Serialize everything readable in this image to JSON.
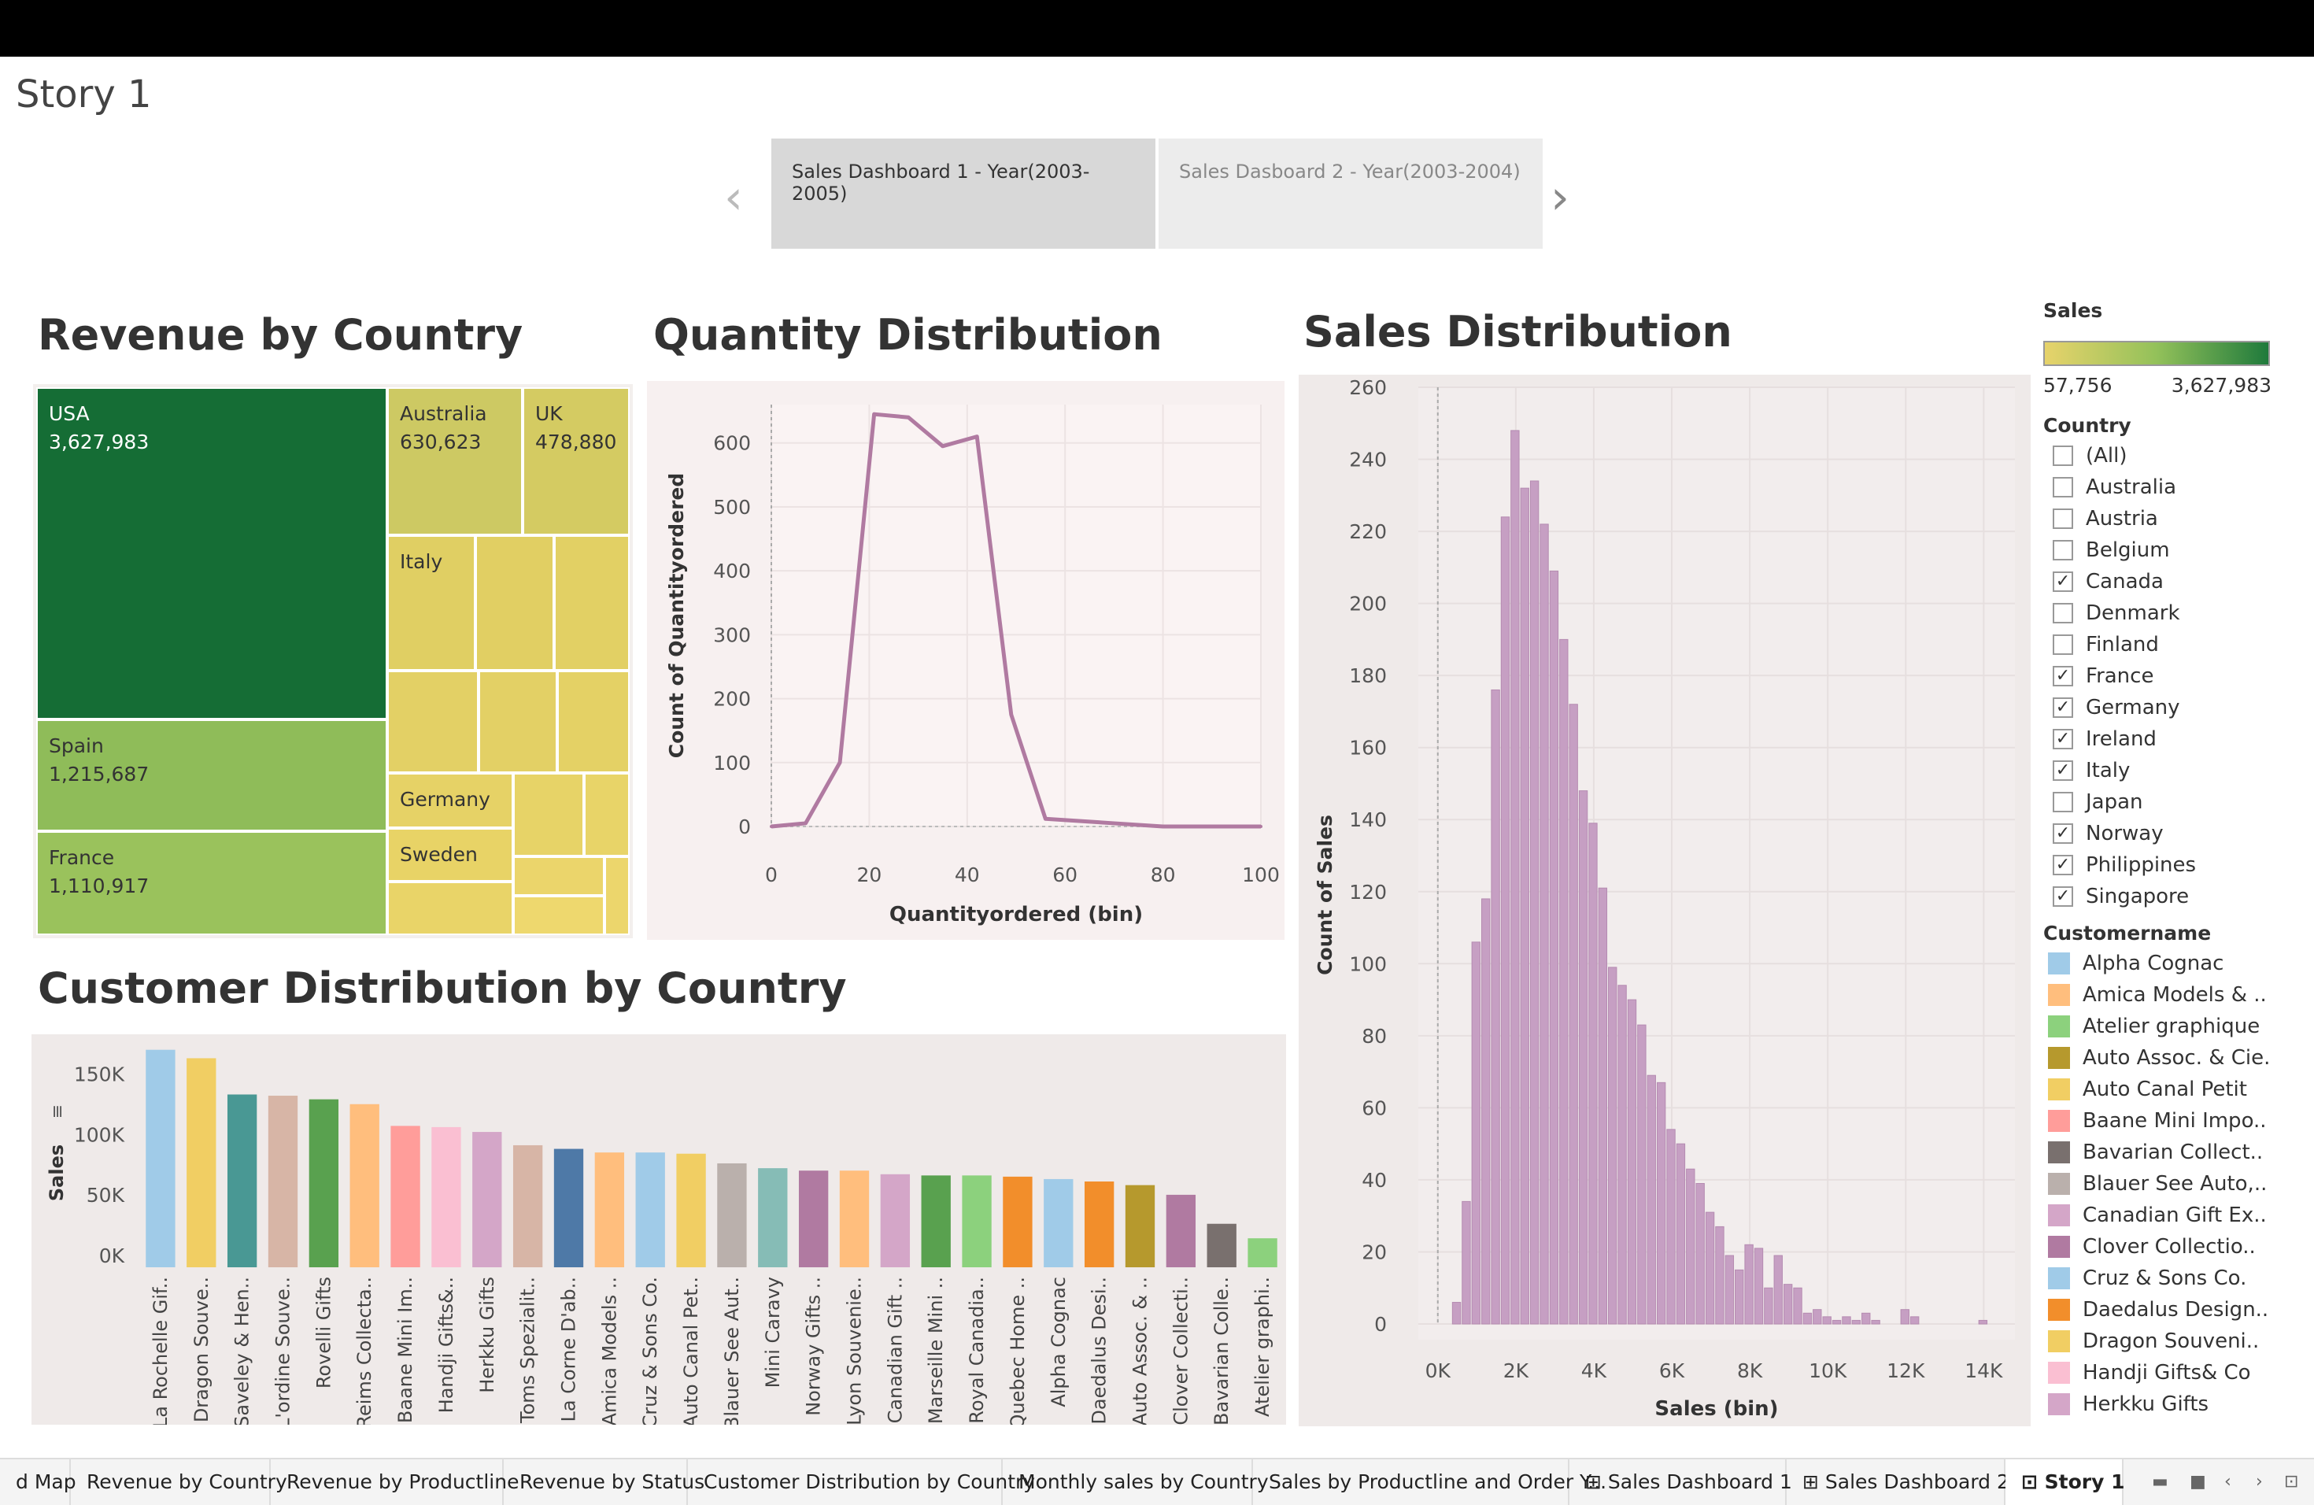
{
  "story": {
    "title": "Story 1",
    "tabs": [
      "Sales Dashboard  1 - Year(2003-2005)",
      "Sales Dasboard  2 - Year(2003-2004)"
    ],
    "prev_icon": "‹",
    "next_icon": "›"
  },
  "panels": {
    "revenue_title": "Revenue by Country",
    "quantity_title": "Quantity Distribution",
    "sales_title": "Sales Distribution",
    "customer_title": "Customer Distribution by Country"
  },
  "treemap": {
    "cells": [
      {
        "name": "USA",
        "value": "3,627,983",
        "color": "#156d35"
      },
      {
        "name": "Spain",
        "value": "1,215,687",
        "color": "#8fbc59"
      },
      {
        "name": "France",
        "value": "1,110,917",
        "color": "#9ac25c"
      },
      {
        "name": "Australia",
        "value": "630,623",
        "color": "#cdc963"
      },
      {
        "name": "UK",
        "value": "478,880",
        "color": "#d4cb62"
      },
      {
        "name": "Italy",
        "value": "",
        "color": "#e0cf63"
      },
      {
        "name": "Germany",
        "value": "",
        "color": "#e6d266"
      },
      {
        "name": "Sweden",
        "value": "",
        "color": "#e8d366"
      }
    ]
  },
  "chart_data": [
    {
      "type": "line",
      "title": "Quantity Distribution",
      "xlabel": "Quantityordered (bin)",
      "ylabel": "Count of Quantityordered",
      "x": [
        0,
        7,
        14,
        21,
        28,
        35,
        42,
        49,
        56,
        70,
        80,
        90,
        100
      ],
      "values": [
        0,
        5,
        100,
        645,
        640,
        595,
        610,
        175,
        12,
        5,
        0,
        0,
        0
      ],
      "xticks": [
        "0",
        "20",
        "40",
        "60",
        "80",
        "100"
      ],
      "yticks": [
        "0",
        "100",
        "200",
        "300",
        "400",
        "500",
        "600"
      ],
      "xlim": [
        0,
        100
      ],
      "ylim": [
        0,
        660
      ],
      "color": "#b07aa1"
    },
    {
      "type": "bar",
      "title": "Sales Distribution",
      "xlabel": "Sales (bin)",
      "ylabel": "Count of Sales",
      "x": [
        500,
        750,
        1000,
        1250,
        1500,
        1750,
        2000,
        2250,
        2500,
        2750,
        3000,
        3250,
        3500,
        3750,
        4000,
        4250,
        4500,
        4750,
        5000,
        5250,
        5500,
        5750,
        6000,
        6250,
        6500,
        6750,
        7000,
        7250,
        7500,
        7750,
        8000,
        8250,
        8500,
        8750,
        9000,
        9250,
        9500,
        9750,
        10000,
        10250,
        10500,
        10750,
        11000,
        11250,
        11500,
        11750,
        12000,
        12250,
        12500,
        14000
      ],
      "values": [
        6,
        34,
        106,
        118,
        176,
        224,
        248,
        232,
        234,
        222,
        209,
        190,
        172,
        148,
        139,
        121,
        99,
        94,
        90,
        83,
        69,
        67,
        54,
        50,
        43,
        39,
        31,
        27,
        19,
        15,
        22,
        21,
        10,
        19,
        11,
        10,
        3,
        4,
        2,
        1,
        2,
        1,
        3,
        1,
        0,
        0,
        4,
        2,
        0,
        1
      ],
      "xticks": [
        "0K",
        "2K",
        "4K",
        "6K",
        "8K",
        "10K",
        "12K",
        "14K"
      ],
      "yticks": [
        "0",
        "20",
        "40",
        "60",
        "80",
        "100",
        "120",
        "140",
        "160",
        "180",
        "200",
        "220",
        "240",
        "260"
      ],
      "ylim": [
        0,
        260
      ],
      "color": "#c69fc3"
    },
    {
      "type": "bar",
      "title": "Customer Distribution by Country",
      "ylabel": "Sales",
      "ylabel_icon": "≡",
      "categories": [
        "La Rochelle Gif..",
        "Dragon Souve..",
        "Saveley & Hen..",
        "L'ordine Souve..",
        "Rovelli Gifts",
        "Reims Collecta..",
        "Baane Mini Im..",
        "Handji Gifts&..",
        "Herkku Gifts",
        "Toms Spezialit..",
        "La Corne D'ab..",
        "Amica Models ..",
        "Cruz & Sons Co.",
        "Auto Canal Pet..",
        "Blauer See Aut..",
        "Mini Caravy",
        "Norway Gifts ..",
        "Lyon Souvenie..",
        "Canadian Gift ..",
        "Marseille Mini ..",
        "Royal Canadia..",
        "Quebec Home ..",
        "Alpha Cognac",
        "Daedalus Desi..",
        "Auto Assoc. & ..",
        "Clover Collecti..",
        "Bavarian Colle..",
        "Atelier graphi.."
      ],
      "values": [
        180000,
        173000,
        143000,
        142000,
        139000,
        135000,
        117000,
        116000,
        112000,
        101000,
        98000,
        95000,
        95000,
        94000,
        86000,
        82000,
        80000,
        80000,
        77000,
        76000,
        76000,
        75000,
        73000,
        71000,
        68000,
        60000,
        36000,
        24000
      ],
      "colors": [
        "#a0cbe8",
        "#f1ce63",
        "#499894",
        "#d7b5a6",
        "#59a14f",
        "#ffbe7d",
        "#ff9d9a",
        "#fabfd2",
        "#d4a6c8",
        "#d7b5a6",
        "#4e79a7",
        "#ffbe7d",
        "#a0cbe8",
        "#f1ce63",
        "#bab0ac",
        "#86bcb6",
        "#b07aa1",
        "#ffbe7d",
        "#d4a6c8",
        "#59a14f",
        "#8cd17d",
        "#f28e2b",
        "#a0cbe8",
        "#f28e2b",
        "#b6992d",
        "#b07aa1",
        "#79706e",
        "#8cd17d"
      ],
      "yticks": [
        "0K",
        "50K",
        "100K",
        "150K"
      ],
      "ylim": [
        0,
        185000
      ]
    }
  ],
  "legend": {
    "sales_label": "Sales",
    "sales_min": "57,756",
    "sales_max": "3,627,983",
    "country_label": "Country",
    "countries": [
      {
        "name": "(All)",
        "checked": false
      },
      {
        "name": "Australia",
        "checked": false
      },
      {
        "name": "Austria",
        "checked": false
      },
      {
        "name": "Belgium",
        "checked": false
      },
      {
        "name": "Canada",
        "checked": true
      },
      {
        "name": "Denmark",
        "checked": false
      },
      {
        "name": "Finland",
        "checked": false
      },
      {
        "name": "France",
        "checked": true
      },
      {
        "name": "Germany",
        "checked": true
      },
      {
        "name": "Ireland",
        "checked": true
      },
      {
        "name": "Italy",
        "checked": true
      },
      {
        "name": "Japan",
        "checked": false
      },
      {
        "name": "Norway",
        "checked": true
      },
      {
        "name": "Philippines",
        "checked": true
      },
      {
        "name": "Singapore",
        "checked": true
      }
    ],
    "customer_label": "Customername",
    "customers": [
      {
        "name": "Alpha Cognac",
        "color": "#a0cbe8"
      },
      {
        "name": "Amica Models & ..",
        "color": "#ffbe7d"
      },
      {
        "name": "Atelier graphique",
        "color": "#8cd17d"
      },
      {
        "name": "Auto Assoc. & Cie.",
        "color": "#b6992d"
      },
      {
        "name": "Auto Canal Petit",
        "color": "#f1ce63"
      },
      {
        "name": "Baane Mini Impo..",
        "color": "#ff9d9a"
      },
      {
        "name": "Bavarian Collect..",
        "color": "#79706e"
      },
      {
        "name": "Blauer See Auto,..",
        "color": "#bab0ac"
      },
      {
        "name": "Canadian Gift Ex..",
        "color": "#d4a6c8"
      },
      {
        "name": "Clover Collectio..",
        "color": "#b07aa1"
      },
      {
        "name": "Cruz & Sons Co.",
        "color": "#a0cbe8"
      },
      {
        "name": "Daedalus Design..",
        "color": "#f28e2b"
      },
      {
        "name": "Dragon Souveni..",
        "color": "#f1ce63"
      },
      {
        "name": "Handji Gifts& Co",
        "color": "#fabfd2"
      },
      {
        "name": "Herkku Gifts",
        "color": "#d4a6c8"
      }
    ],
    "check_mark": "✓"
  },
  "bottom_tabs": [
    {
      "label": "d Map",
      "icon": ""
    },
    {
      "label": "Revenue by Country",
      "icon": ""
    },
    {
      "label": "Revenue by Productline",
      "icon": ""
    },
    {
      "label": "Revenue by Status",
      "icon": ""
    },
    {
      "label": "Customer Distribution by Country",
      "icon": ""
    },
    {
      "label": "Monthly sales by Country",
      "icon": ""
    },
    {
      "label": "Sales by Productline and Order Y...",
      "icon": ""
    },
    {
      "label": "Sales Dashboard 1",
      "icon": "⊞"
    },
    {
      "label": "Sales Dashboard 2",
      "icon": "⊞"
    },
    {
      "label": "Story 1",
      "icon": "⊡"
    }
  ],
  "bottom_controls": [
    "▬",
    "■",
    "‹",
    "›",
    "⊡"
  ]
}
